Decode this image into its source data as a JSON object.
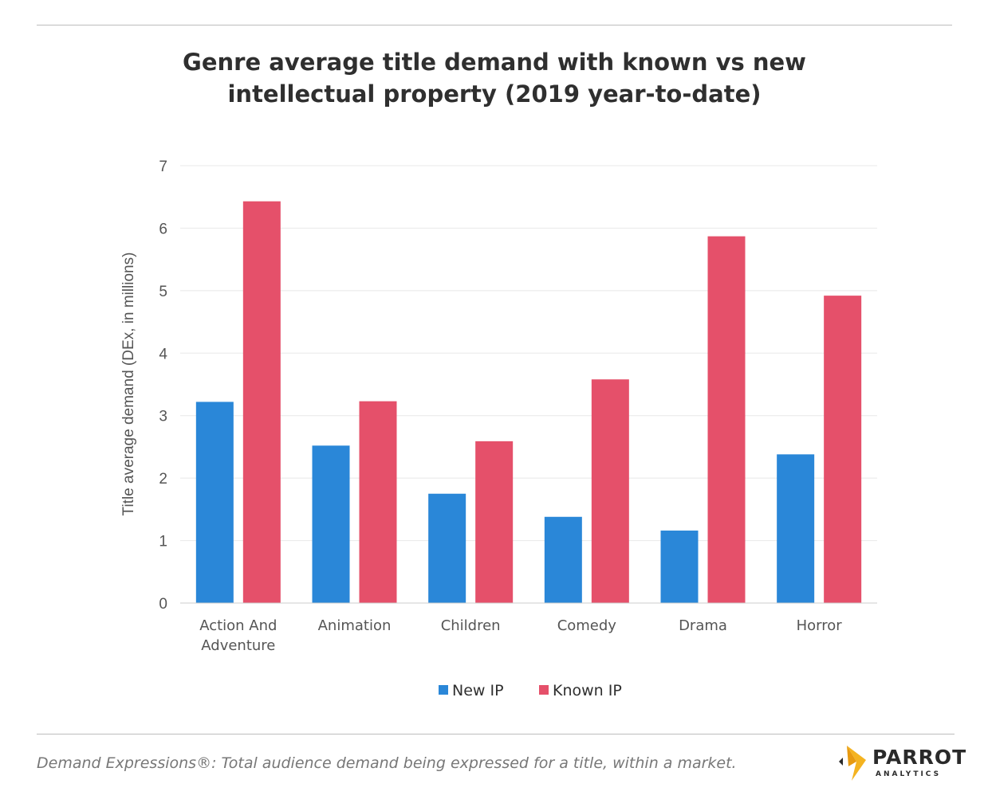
{
  "header": {
    "title_line1": "Genre average title demand with known vs new",
    "title_line2": "intellectual property (2019 year-to-date)"
  },
  "chart_data": {
    "type": "bar",
    "title": "Genre average title demand with known vs new intellectual property (2019 year-to-date)",
    "xlabel": "",
    "ylabel": "Title average demand (DEx, in millions)",
    "ylim": [
      0,
      7
    ],
    "yticks": [
      0,
      1,
      2,
      3,
      4,
      5,
      6,
      7
    ],
    "grid": true,
    "legend_position": "bottom-center",
    "categories": [
      [
        "Action And",
        "Adventure"
      ],
      [
        "Animation"
      ],
      [
        "Children"
      ],
      [
        "Comedy"
      ],
      [
        "Drama"
      ],
      [
        "Horror"
      ]
    ],
    "series": [
      {
        "name": "New IP",
        "color": "#2a87d8",
        "values": [
          3.22,
          2.52,
          1.75,
          1.38,
          1.16,
          2.38
        ]
      },
      {
        "name": "Known IP",
        "color": "#e5506a",
        "values": [
          6.43,
          3.23,
          2.59,
          3.58,
          5.87,
          4.92
        ]
      }
    ]
  },
  "footer": {
    "footnote": "Demand Expressions®:  Total audience demand being expressed for a title, within a market.",
    "logo_word": "PARROT",
    "logo_sub": "ANALYTICS"
  }
}
